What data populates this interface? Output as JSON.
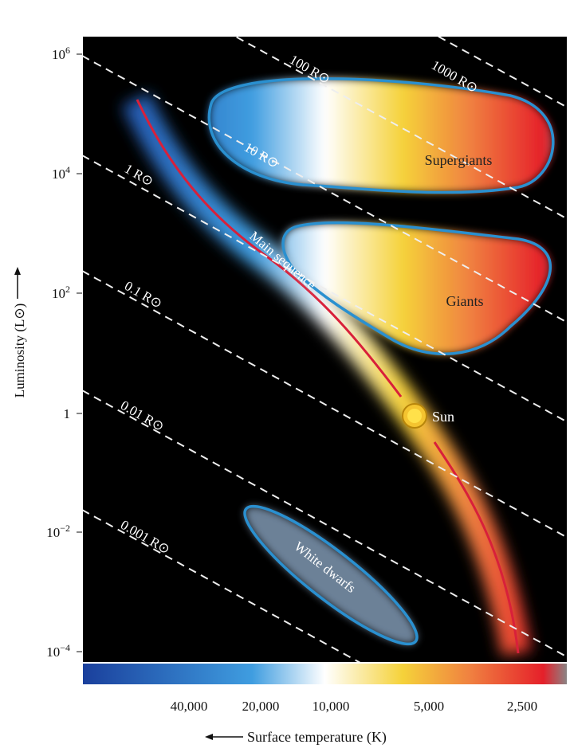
{
  "y_axis": {
    "title": "Luminosity (L⊙)",
    "ticks": [
      {
        "base": "10",
        "exp": "6"
      },
      {
        "base": "10",
        "exp": "4"
      },
      {
        "base": "10",
        "exp": "2"
      },
      {
        "base": "1"
      },
      {
        "base": "10",
        "exp": "−2"
      },
      {
        "base": "10",
        "exp": "−4"
      }
    ]
  },
  "x_axis": {
    "title": "Surface temperature (K)",
    "ticks": [
      "40,000",
      "20,000",
      "10,000",
      "5,000",
      "2,500"
    ]
  },
  "radius_labels": [
    "1000 R⊙",
    "100 R⊙",
    "10 R⊙",
    "1 R⊙",
    "0.1 R⊙",
    "0.01 R⊙",
    "0.001 R⊙"
  ],
  "regions": {
    "supergiants": "Supergiants",
    "giants": "Giants",
    "main_sequence": "Main sequence",
    "white_dwarfs": "White dwarfs",
    "sun": "Sun"
  }
}
